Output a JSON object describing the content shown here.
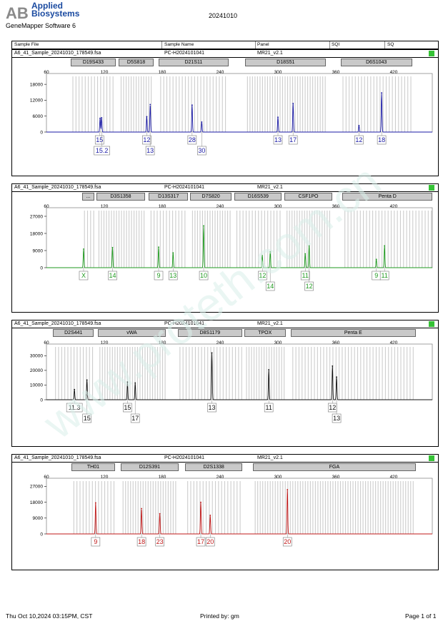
{
  "header": {
    "logo_letters": "AB",
    "logo_line1": "Applied",
    "logo_line2": "Biosystems",
    "software": "GeneMapper Software 6",
    "run_date": "20241010"
  },
  "columns": [
    "Sample File",
    "Sample Name",
    "Panel",
    "SQI",
    "SQ"
  ],
  "colors": {
    "blue": "#1a1aa6",
    "green": "#1f9a1f",
    "black": "#111111",
    "red": "#c01818",
    "quality_ok": "#35c235",
    "bin": "#b8b8b8",
    "watermark": "#d9efe9"
  },
  "watermark": "www.proteth.com.cn",
  "footer": {
    "printed_at": "Thu Oct 10,2024 03:15PM, CST",
    "printed_by": "Printed by: gm",
    "page": "Page 1 of 1"
  },
  "chart_data": [
    {
      "type": "line",
      "sample_file": "A6_41_Sample_20241010_178549.fsa",
      "sample_name": "PC-H2024101041",
      "panel": "MR21_v2.1",
      "dye": "blue",
      "x_ticks": [
        "60",
        "120",
        "180",
        "240",
        "300",
        "360",
        "420"
      ],
      "xlim": [
        60,
        460
      ],
      "y_ticks": [
        "0",
        "6000",
        "12000",
        "18000"
      ],
      "ylim": [
        0,
        21000
      ],
      "markers": [
        {
          "name": "D19S433",
          "start": 85,
          "end": 132
        },
        {
          "name": "D5S818",
          "start": 135,
          "end": 171
        },
        {
          "name": "D21S11",
          "start": 176,
          "end": 249
        },
        {
          "name": "D18S51",
          "start": 266,
          "end": 350
        },
        {
          "name": "D6S1043",
          "start": 365,
          "end": 439
        }
      ],
      "peaks": [
        {
          "x": 115.6,
          "y": 5200
        },
        {
          "x": 117.2,
          "y": 5400
        },
        {
          "x": 164,
          "y": 5800
        },
        {
          "x": 167.6,
          "y": 10400
        },
        {
          "x": 211,
          "y": 10200
        },
        {
          "x": 221,
          "y": 3800
        },
        {
          "x": 300,
          "y": 5600
        },
        {
          "x": 315.7,
          "y": 10800
        },
        {
          "x": 384,
          "y": 2500
        },
        {
          "x": 407.5,
          "y": 14800
        }
      ],
      "alleles": [
        {
          "label": "15",
          "x": 115,
          "row": 0
        },
        {
          "label": "15.2",
          "x": 117.5,
          "row": 1
        },
        {
          "label": "12",
          "x": 164,
          "row": 0
        },
        {
          "label": "13",
          "x": 167.5,
          "row": 1
        },
        {
          "label": "28",
          "x": 211,
          "row": 0
        },
        {
          "label": "30",
          "x": 221,
          "row": 1
        },
        {
          "label": "13",
          "x": 300,
          "row": 0
        },
        {
          "label": "17",
          "x": 315.7,
          "row": 0
        },
        {
          "label": "12",
          "x": 384,
          "row": 0
        },
        {
          "label": "18",
          "x": 407.5,
          "row": 0
        }
      ]
    },
    {
      "type": "line",
      "sample_file": "A6_41_Sample_20241010_178549.fsa",
      "sample_name": "PC-H2024101041",
      "panel": "MR21_v2.1",
      "dye": "green",
      "x_ticks": [
        "60",
        "120",
        "180",
        "240",
        "300",
        "360",
        "420"
      ],
      "xlim": [
        60,
        460
      ],
      "y_ticks": [
        "0",
        "9000",
        "18000",
        "27000"
      ],
      "ylim": [
        0,
        30000
      ],
      "markers": [
        {
          "name": "...",
          "start": 97,
          "end": 110
        },
        {
          "name": "D3S1358",
          "start": 112,
          "end": 162
        },
        {
          "name": "D13S317",
          "start": 166,
          "end": 207
        },
        {
          "name": "D7S820",
          "start": 209,
          "end": 252
        },
        {
          "name": "D16S539",
          "start": 255,
          "end": 304
        },
        {
          "name": "CSF1PO",
          "start": 307,
          "end": 356
        },
        {
          "name": "Penta D",
          "start": 367,
          "end": 460
        }
      ],
      "peaks": [
        {
          "x": 98.5,
          "y": 9800
        },
        {
          "x": 128.5,
          "y": 10600
        },
        {
          "x": 176.3,
          "y": 10800
        },
        {
          "x": 191.3,
          "y": 7800
        },
        {
          "x": 223,
          "y": 22000
        },
        {
          "x": 283.8,
          "y": 6400
        },
        {
          "x": 292,
          "y": 8400
        },
        {
          "x": 328.3,
          "y": 7300
        },
        {
          "x": 332.3,
          "y": 11500
        },
        {
          "x": 402,
          "y": 4400
        },
        {
          "x": 410.5,
          "y": 11500
        }
      ],
      "alleles": [
        {
          "label": "X",
          "x": 98.5,
          "row": 0
        },
        {
          "label": "14",
          "x": 128.5,
          "row": 0
        },
        {
          "label": "9",
          "x": 176.3,
          "row": 0
        },
        {
          "label": "13",
          "x": 191.3,
          "row": 0
        },
        {
          "label": "10",
          "x": 223,
          "row": 0
        },
        {
          "label": "12",
          "x": 284,
          "row": 0
        },
        {
          "label": "14",
          "x": 292,
          "row": 1
        },
        {
          "label": "11",
          "x": 328.3,
          "row": 0
        },
        {
          "label": "12",
          "x": 332.3,
          "row": 1
        },
        {
          "label": "9",
          "x": 402,
          "row": 0
        },
        {
          "label": "11",
          "x": 410.5,
          "row": 0
        }
      ]
    },
    {
      "type": "line",
      "sample_file": "A6_41_Sample_20241010_178549.fsa",
      "sample_name": "PC-H2024101041",
      "panel": "MR21_v2.1",
      "dye": "black",
      "x_ticks": [
        "60",
        "120",
        "180",
        "240",
        "300",
        "360",
        "420"
      ],
      "xlim": [
        60,
        460
      ],
      "y_ticks": [
        "0",
        "10000",
        "20000",
        "30000"
      ],
      "ylim": [
        0,
        36000
      ],
      "markers": [
        {
          "name": "D2S441",
          "start": 67,
          "end": 109
        },
        {
          "name": "vWA",
          "start": 113,
          "end": 184
        },
        {
          "name": "D8S1179",
          "start": 196,
          "end": 263
        },
        {
          "name": "TPOX",
          "start": 265,
          "end": 308
        },
        {
          "name": "Penta E",
          "start": 313,
          "end": 443
        }
      ],
      "peaks": [
        {
          "x": 89,
          "y": 7000
        },
        {
          "x": 102,
          "y": 13500
        },
        {
          "x": 144,
          "y": 12000
        },
        {
          "x": 152,
          "y": 11500
        },
        {
          "x": 231.5,
          "y": 32000
        },
        {
          "x": 290.5,
          "y": 20500
        },
        {
          "x": 356.5,
          "y": 23000
        },
        {
          "x": 360.8,
          "y": 15500
        }
      ],
      "alleles": [
        {
          "label": "11.3",
          "x": 89,
          "row": 0
        },
        {
          "label": "15",
          "x": 102,
          "row": 1
        },
        {
          "label": "15",
          "x": 144,
          "row": 0
        },
        {
          "label": "17",
          "x": 152,
          "row": 1
        },
        {
          "label": "13",
          "x": 231.5,
          "row": 0
        },
        {
          "label": "11",
          "x": 290.5,
          "row": 0
        },
        {
          "label": "12",
          "x": 356.5,
          "row": 0
        },
        {
          "label": "13",
          "x": 360.8,
          "row": 1
        }
      ]
    },
    {
      "type": "line",
      "sample_file": "A6_41_Sample_20241010_178549.fsa",
      "sample_name": "PC-H2024101041",
      "panel": "MR21_v2.1",
      "dye": "red",
      "x_ticks": [
        "60",
        "120",
        "180",
        "240",
        "300",
        "360",
        "420"
      ],
      "xlim": [
        60,
        460
      ],
      "y_ticks": [
        "0",
        "9000",
        "18000",
        "27000"
      ],
      "ylim": [
        0,
        30000
      ],
      "markers": [
        {
          "name": "TH01",
          "start": 86,
          "end": 131
        },
        {
          "name": "D12S391",
          "start": 137,
          "end": 197
        },
        {
          "name": "D2S1338",
          "start": 204,
          "end": 263
        },
        {
          "name": "FGA",
          "start": 274,
          "end": 443
        }
      ],
      "peaks": [
        {
          "x": 111,
          "y": 17700
        },
        {
          "x": 158.6,
          "y": 14400
        },
        {
          "x": 177.5,
          "y": 11500
        },
        {
          "x": 220,
          "y": 18000
        },
        {
          "x": 229.8,
          "y": 10600
        },
        {
          "x": 309.8,
          "y": 25200
        }
      ],
      "alleles": [
        {
          "label": "9",
          "x": 111,
          "row": 0
        },
        {
          "label": "18",
          "x": 158.6,
          "row": 0
        },
        {
          "label": "23",
          "x": 177.5,
          "row": 0
        },
        {
          "label": "17",
          "x": 220,
          "row": 0
        },
        {
          "label": "20",
          "x": 229.8,
          "row": 0
        },
        {
          "label": "20",
          "x": 309.8,
          "row": 0
        }
      ]
    }
  ]
}
